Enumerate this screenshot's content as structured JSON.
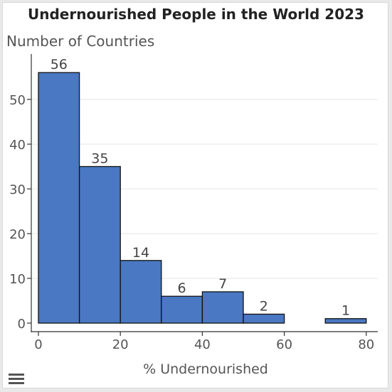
{
  "chart_data": {
    "type": "bar",
    "title": "Undernourished People in the World 2023",
    "ylabel": "Number of Countries",
    "xlabel": "% Undernourished",
    "bins": [
      {
        "start": 0,
        "end": 10,
        "value": 56
      },
      {
        "start": 10,
        "end": 20,
        "value": 35
      },
      {
        "start": 20,
        "end": 30,
        "value": 14
      },
      {
        "start": 30,
        "end": 40,
        "value": 6
      },
      {
        "start": 40,
        "end": 50,
        "value": 7
      },
      {
        "start": 50,
        "end": 60,
        "value": 2
      },
      {
        "start": 70,
        "end": 80,
        "value": 1
      }
    ],
    "xticks": [
      "0",
      "20",
      "40",
      "60",
      "80"
    ],
    "yticks": [
      "0",
      "10",
      "20",
      "30",
      "40",
      "50"
    ],
    "xlim": [
      0,
      80
    ],
    "ylim": [
      0,
      56
    ],
    "grid": true,
    "colors": {
      "bar": "#4a78c2",
      "bar_edge": "#111111",
      "grid": "#e6e6e6"
    }
  },
  "ui": {
    "menu_icon": "hamburger-menu-icon"
  }
}
